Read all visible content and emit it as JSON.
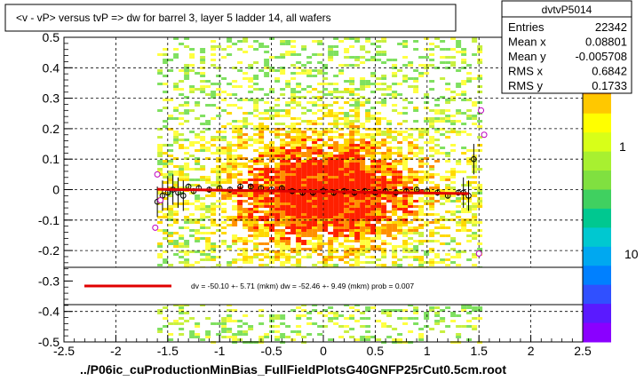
{
  "chart_data": {
    "type": "heatmap",
    "title": "<v - vP>       versus  tvP =>  dw for barrel 3, layer 5 ladder 14, all wafers",
    "xlabel": "../P06ic_cuProductionMinBias_FullFieldPlotsG40GNFP25rCut0.5cm.root",
    "ylabel": "",
    "xlim": [
      -2.5,
      2.5
    ],
    "ylim": [
      -0.5,
      0.5
    ],
    "x_ticks": [
      "-2.5",
      "-2",
      "-1.5",
      "-1",
      "-0.5",
      "0",
      "0.5",
      "1",
      "1.5",
      "2",
      "2.5"
    ],
    "y_ticks": [
      "-0.5",
      "-0.4",
      "-0.3",
      "-0.2",
      "-0.1",
      "0",
      "0.1",
      "0.2",
      "0.3",
      "0.4",
      "0.5"
    ],
    "x_tick_values": [
      -2.5,
      -2,
      -1.5,
      -1,
      -0.5,
      0,
      0.5,
      1,
      1.5,
      2,
      2.5
    ],
    "y_tick_values": [
      -0.5,
      -0.4,
      -0.3,
      -0.2,
      -0.1,
      0,
      0.1,
      0.2,
      0.3,
      0.4,
      0.5
    ],
    "grid": true,
    "density_x_range": [
      -1.6,
      1.5
    ],
    "stats": {
      "name": "dvtvP5014",
      "rows": [
        {
          "label": "Entries",
          "value": "22342"
        },
        {
          "label": "Mean x",
          "value": "0.08801"
        },
        {
          "label": "Mean y",
          "value": "-0.005708"
        },
        {
          "label": "RMS x",
          "value": "0.6842"
        },
        {
          "label": "RMS y",
          "value": "0.1733"
        }
      ]
    },
    "colorbar": {
      "labels": [
        "1",
        "10"
      ]
    },
    "fit_legend": "dv =  -50.10 +-  5.71 (mkm) dw =  -52.46 +-  9.49 (mkm) prob = 0.007",
    "fit_line": {
      "x": [
        -1.6,
        1.4
      ],
      "y": [
        0.001,
        -0.013
      ]
    },
    "profile_points": {
      "x": [
        -1.6,
        -1.55,
        -1.5,
        -1.45,
        -1.4,
        -1.35,
        -1.3,
        -1.25,
        -1.2,
        -1.1,
        -1.0,
        -0.9,
        -0.8,
        -0.7,
        -0.6,
        -0.5,
        -0.4,
        -0.3,
        -0.2,
        -0.1,
        0.0,
        0.1,
        0.2,
        0.3,
        0.4,
        0.5,
        0.6,
        0.7,
        0.8,
        0.9,
        1.0,
        1.1,
        1.2,
        1.3,
        1.35,
        1.4,
        1.45
      ],
      "y": [
        -0.04,
        -0.02,
        -0.01,
        0.0,
        -0.01,
        -0.02,
        0.01,
        -0.005,
        0.005,
        0.0,
        0.005,
        0.0,
        0.01,
        0.01,
        0.005,
        0.0,
        0.005,
        -0.005,
        -0.01,
        -0.01,
        -0.005,
        -0.01,
        -0.005,
        -0.01,
        -0.005,
        -0.01,
        -0.005,
        -0.01,
        -0.005,
        0.0,
        -0.005,
        -0.01,
        -0.02,
        -0.01,
        -0.01,
        -0.02,
        0.1
      ]
    },
    "outlier_points": {
      "x": [
        -1.62,
        -1.6,
        -1.57,
        1.5,
        1.52,
        1.55
      ],
      "y": [
        -0.125,
        0.05,
        -0.035,
        -0.21,
        0.26,
        0.18
      ]
    }
  }
}
